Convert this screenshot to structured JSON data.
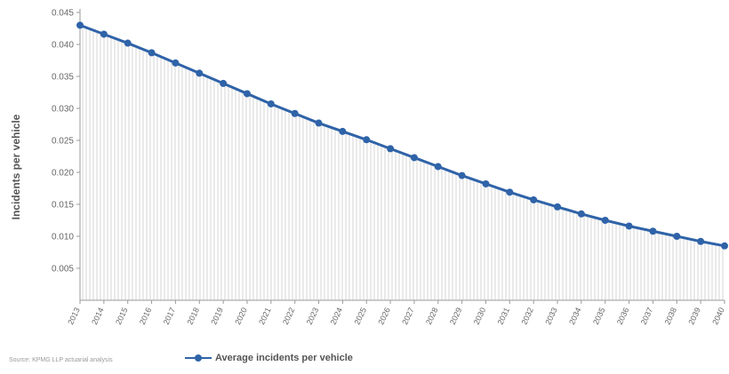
{
  "chart_data": {
    "type": "area",
    "categories": [
      "2013",
      "2014",
      "2015",
      "2016",
      "2017",
      "2018",
      "2019",
      "2020",
      "2021",
      "2022",
      "2023",
      "2024",
      "2025",
      "2026",
      "2027",
      "2028",
      "2029",
      "2030",
      "2031",
      "2032",
      "2033",
      "2034",
      "2035",
      "2036",
      "2037",
      "2038",
      "2039",
      "2040"
    ],
    "series": [
      {
        "name": "Average incidents per vehicle",
        "values": [
          0.043,
          0.0416,
          0.0402,
          0.0387,
          0.0371,
          0.0355,
          0.0339,
          0.0323,
          0.0307,
          0.0292,
          0.0277,
          0.0264,
          0.0251,
          0.0237,
          0.0223,
          0.0209,
          0.0195,
          0.0182,
          0.0169,
          0.0157,
          0.0146,
          0.0135,
          0.0125,
          0.0116,
          0.0108,
          0.01,
          0.0092,
          0.0085
        ],
        "color": "#2f63a8"
      }
    ],
    "ylabel": "Incidents per vehicle",
    "xlabel": "",
    "ylim": [
      0,
      0.045
    ],
    "yticks": [
      "0.045",
      "0.040",
      "0.035",
      "0.030",
      "0.025",
      "0.020",
      "0.015",
      "0.010",
      "0.005"
    ],
    "grid": false,
    "fill": "vertical-hatch",
    "legend_position": "bottom"
  },
  "source": "Source: KPMG LLP actuarial analysis"
}
